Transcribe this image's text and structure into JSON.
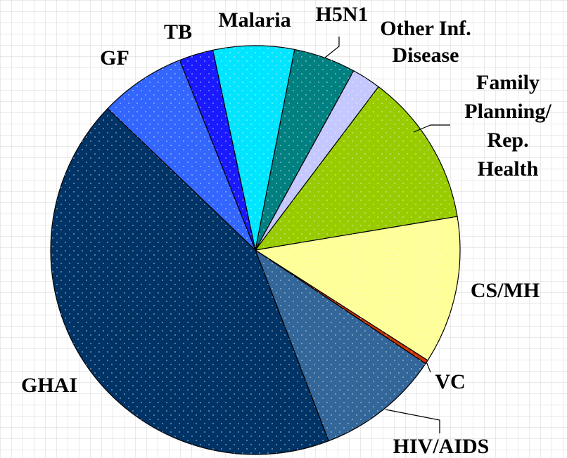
{
  "chart_data": {
    "type": "pie",
    "categories": [
      "TB",
      "Malaria",
      "H5N1",
      "Other Inf.\nDisease",
      "Family\nPlanning/\nRep.\nHealth",
      "CS/MH",
      "VC",
      "HIV/AIDS",
      "GHAI",
      "GF"
    ],
    "values": [
      2.7,
      6.4,
      4.9,
      2.3,
      12.1,
      11.7,
      0.3,
      9.8,
      43,
      6.8
    ],
    "colors": [
      "#1a1aff",
      "#00e5ff",
      "#008080",
      "#c4c8ff",
      "#99cc00",
      "#ffff99",
      "#cc3300",
      "#336699",
      "#003366",
      "#3366ff"
    ]
  }
}
